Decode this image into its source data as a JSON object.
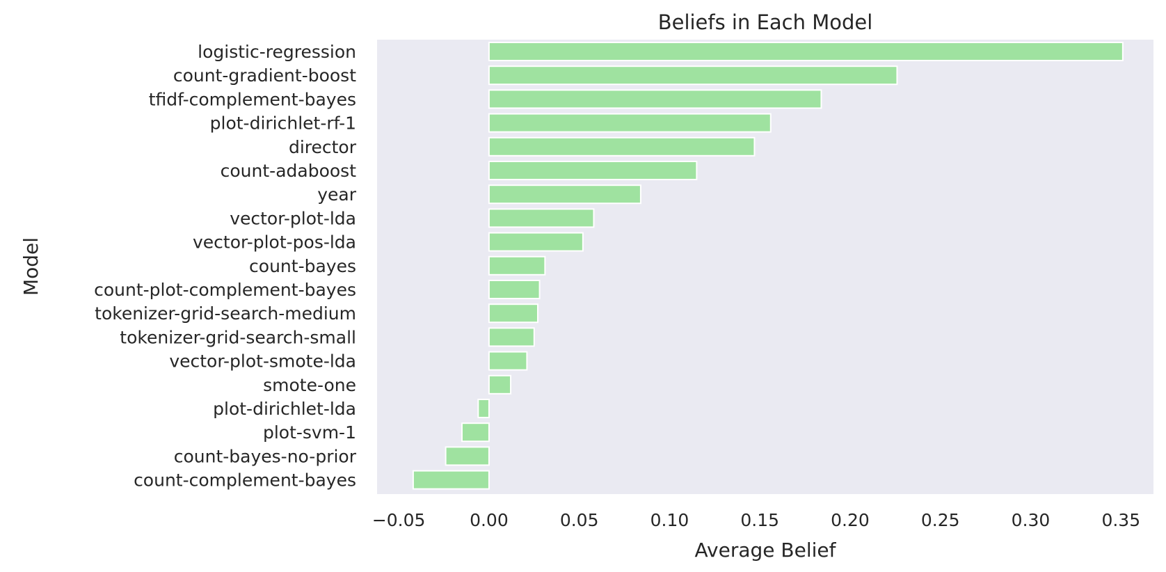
{
  "chart_data": {
    "type": "bar",
    "orientation": "horizontal",
    "title": "Beliefs in Each Model",
    "xlabel": "Average Belief",
    "ylabel": "Model",
    "xlim": [
      -0.062,
      0.368
    ],
    "xticks": [
      -0.05,
      0.0,
      0.05,
      0.1,
      0.15,
      0.2,
      0.25,
      0.3,
      0.35
    ],
    "xtick_labels": [
      "−0.05",
      "0.00",
      "0.05",
      "0.10",
      "0.15",
      "0.20",
      "0.25",
      "0.30",
      "0.35"
    ],
    "grid": false,
    "background": "#eaeaf2",
    "bar_color": "#9fe2a0",
    "categories": [
      "logistic-regression",
      "count-gradient-boost",
      "tfidf-complement-bayes",
      "plot-dirichlet-rf-1",
      "director",
      "count-adaboost",
      "year",
      "vector-plot-lda",
      "vector-plot-pos-lda",
      "count-bayes",
      "count-plot-complement-bayes",
      "tokenizer-grid-search-medium",
      "tokenizer-grid-search-small",
      "vector-plot-smote-lda",
      "smote-one",
      "plot-dirichlet-lda",
      "plot-svm-1",
      "count-bayes-no-prior",
      "count-complement-bayes"
    ],
    "values": [
      0.351,
      0.226,
      0.184,
      0.156,
      0.147,
      0.115,
      0.084,
      0.058,
      0.052,
      0.031,
      0.028,
      0.027,
      0.025,
      0.021,
      0.012,
      -0.006,
      -0.015,
      -0.024,
      -0.042
    ]
  }
}
